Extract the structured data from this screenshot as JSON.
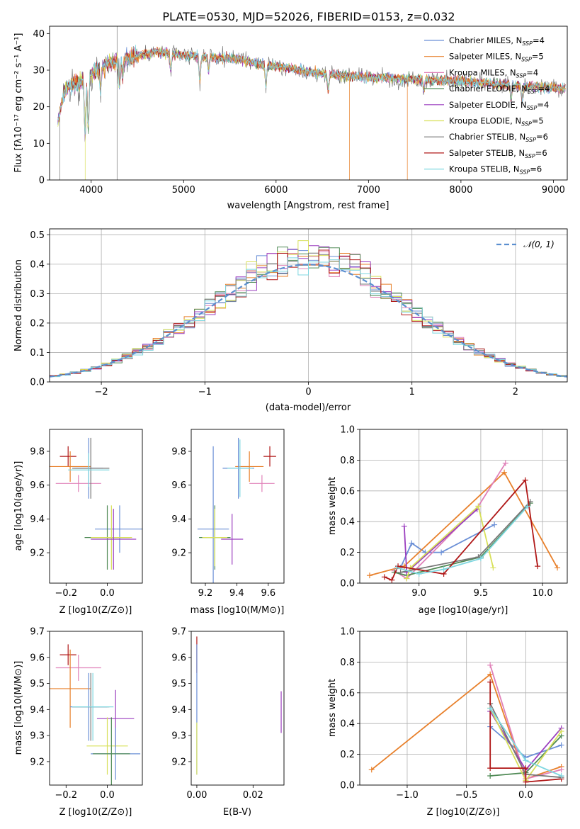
{
  "figure_title": "PLATE=0530, MJD=52026, FIBERID=0153, z=0.032",
  "colors": [
    "#6a8fd6",
    "#e8802b",
    "#e080b8",
    "#4f8a55",
    "#9b3fbf",
    "#d8e05a",
    "#777777",
    "#b01818",
    "#7fd7e0"
  ],
  "chart_data": [
    {
      "id": "spectrum",
      "type": "line",
      "title": "PLATE=0530, MJD=52026, FIBERID=0153, z=0.032",
      "xlabel": "wavelength [Angstrom, rest frame]",
      "ylabel": "Flux [fλ10⁻¹⁷ erg cm⁻² s⁻¹ A⁻¹]",
      "xlim": [
        3550,
        9150
      ],
      "ylim": [
        0,
        42
      ],
      "xticks": [
        4000,
        5000,
        6000,
        7000,
        8000,
        9000
      ],
      "yticks": [
        0,
        10,
        20,
        30,
        40
      ],
      "legend_position": "top-right",
      "legend": [
        "Chabrier MILES, N_SSP=4",
        "Salpeter MILES, N_SSP=5",
        "Kroupa MILES, N_SSP=4",
        "Chabrier ELODIE, N_SSP=4",
        "Salpeter ELODIE, N_SSP=4",
        "Kroupa ELODIE, N_SSP=5",
        "Chabrier STELIB, N_SSP=6",
        "Salpeter STELIB, N_SSP=6",
        "Kroupa STELIB, N_SSP=6"
      ],
      "continuum": [
        [
          3650,
          19
        ],
        [
          3700,
          24
        ],
        [
          3800,
          26
        ],
        [
          3900,
          27
        ],
        [
          4000,
          29
        ],
        [
          4200,
          32
        ],
        [
          4500,
          34
        ],
        [
          4700,
          35
        ],
        [
          5000,
          34
        ],
        [
          5300,
          33.5
        ],
        [
          5600,
          33
        ],
        [
          6000,
          31
        ],
        [
          6500,
          29
        ],
        [
          7000,
          28
        ],
        [
          7500,
          27.5
        ],
        [
          8000,
          27
        ],
        [
          8500,
          26
        ],
        [
          8800,
          25.5
        ],
        [
          9100,
          25
        ]
      ]
    },
    {
      "id": "residuals",
      "type": "histogram",
      "xlabel": "(data-model)/error",
      "ylabel": "Normed distribution",
      "xlim": [
        -2.5,
        2.5
      ],
      "ylim": [
        0,
        0.52
      ],
      "xticks": [
        -2,
        -1,
        0,
        1,
        2
      ],
      "yticks": [
        0.0,
        0.1,
        0.2,
        0.3,
        0.4,
        0.5
      ],
      "legend_position": "top-right",
      "legend": [
        "𝒩(0, 1)"
      ],
      "grid": true,
      "bin_width": 0.1
    },
    {
      "id": "age_vs_Z",
      "type": "errorbar",
      "xlabel": "Z [log10(Z/Z⊙)]",
      "ylabel": "age  [log10(age/yr)]",
      "xlim": [
        -0.28,
        0.17
      ],
      "ylim": [
        9.02,
        9.93
      ],
      "xticks": [
        -0.2,
        0.0
      ],
      "yticks": [
        9.2,
        9.4,
        9.6,
        9.8
      ],
      "points": [
        {
          "x": -0.19,
          "y": 9.77,
          "xerr": 0.04,
          "yerr": 0.06,
          "c": 7
        },
        {
          "x": -0.18,
          "y": 9.71,
          "xerr": 0.1,
          "yerr": 0.09,
          "c": 1
        },
        {
          "x": -0.14,
          "y": 9.61,
          "xerr": 0.11,
          "yerr": 0.05,
          "c": 2
        },
        {
          "x": -0.09,
          "y": 9.7,
          "xerr": 0.07,
          "yerr": 0.18,
          "c": 0
        },
        {
          "x": -0.08,
          "y": 9.7,
          "xerr": 0.09,
          "yerr": 0.18,
          "c": 6
        },
        {
          "x": -0.09,
          "y": 9.69,
          "xerr": 0.1,
          "yerr": 0.1,
          "c": 8
        },
        {
          "x": 0.06,
          "y": 9.34,
          "xerr": 0.12,
          "yerr": 0.14,
          "c": 0
        },
        {
          "x": 0.0,
          "y": 9.29,
          "xerr": 0.11,
          "yerr": 0.19,
          "c": 3
        },
        {
          "x": 0.02,
          "y": 9.29,
          "xerr": 0.1,
          "yerr": 0.19,
          "c": 5
        },
        {
          "x": 0.03,
          "y": 9.28,
          "xerr": 0.11,
          "yerr": 0.18,
          "c": 4
        }
      ]
    },
    {
      "id": "age_vs_mass",
      "type": "errorbar",
      "xlabel": "mass [log10(M/M⊙)]",
      "ylabel": "",
      "xlim": [
        9.11,
        9.7
      ],
      "ylim": [
        9.02,
        9.93
      ],
      "xticks": [
        9.2,
        9.4,
        9.6
      ],
      "yticks": [
        9.2,
        9.4,
        9.6,
        9.8
      ],
      "points": [
        {
          "x": 9.61,
          "y": 9.77,
          "xerr": 0.04,
          "yerr": 0.06,
          "c": 7
        },
        {
          "x": 9.56,
          "y": 9.61,
          "xerr": 0.08,
          "yerr": 0.05,
          "c": 2
        },
        {
          "x": 9.48,
          "y": 9.71,
          "xerr": 0.09,
          "yerr": 0.09,
          "c": 1
        },
        {
          "x": 9.41,
          "y": 9.7,
          "xerr": 0.1,
          "yerr": 0.18,
          "c": 0
        },
        {
          "x": 9.42,
          "y": 9.7,
          "xerr": 0.08,
          "yerr": 0.17,
          "c": 8
        },
        {
          "x": 9.25,
          "y": 9.34,
          "xerr": 0.1,
          "yerr": 0.49,
          "c": 0
        },
        {
          "x": 9.26,
          "y": 9.29,
          "xerr": 0.1,
          "yerr": 0.19,
          "c": 3
        },
        {
          "x": 9.26,
          "y": 9.29,
          "xerr": 0.08,
          "yerr": 0.17,
          "c": 5
        },
        {
          "x": 9.37,
          "y": 9.28,
          "xerr": 0.07,
          "yerr": 0.15,
          "c": 4
        }
      ]
    },
    {
      "id": "massweight_vs_age",
      "type": "line",
      "xlabel": "age  [log10(age/yr)]",
      "ylabel": "mass weight",
      "xlim": [
        8.52,
        10.2
      ],
      "ylim": [
        0,
        1.0
      ],
      "xticks": [
        9.0,
        9.5,
        10.0
      ],
      "yticks": [
        0.0,
        0.2,
        0.4,
        0.6,
        0.8,
        1.0
      ],
      "grid": true,
      "series": [
        {
          "c": 0,
          "points": [
            [
              8.85,
              0.1
            ],
            [
              8.94,
              0.26
            ],
            [
              9.05,
              0.2
            ],
            [
              9.18,
              0.2
            ],
            [
              9.61,
              0.38
            ]
          ]
        },
        {
          "c": 1,
          "points": [
            [
              8.6,
              0.05
            ],
            [
              8.88,
              0.11
            ],
            [
              9.69,
              0.72
            ],
            [
              10.12,
              0.1
            ]
          ]
        },
        {
          "c": 2,
          "points": [
            [
              8.8,
              0.08
            ],
            [
              8.9,
              0.03
            ],
            [
              9.48,
              0.5
            ],
            [
              9.7,
              0.78
            ]
          ]
        },
        {
          "c": 3,
          "points": [
            [
              8.8,
              0.07
            ],
            [
              8.9,
              0.05
            ],
            [
              9.5,
              0.17
            ],
            [
              9.9,
              0.52
            ]
          ]
        },
        {
          "c": 4,
          "points": [
            [
              8.88,
              0.37
            ],
            [
              8.9,
              0.07
            ],
            [
              9.47,
              0.48
            ]
          ]
        },
        {
          "c": 5,
          "points": [
            [
              8.9,
              0.03
            ],
            [
              8.93,
              0.1
            ],
            [
              9.48,
              0.5
            ],
            [
              9.6,
              0.1
            ]
          ]
        },
        {
          "c": 6,
          "points": [
            [
              8.85,
              0.07
            ],
            [
              9.48,
              0.17
            ],
            [
              9.9,
              0.53
            ]
          ]
        },
        {
          "c": 7,
          "points": [
            [
              8.72,
              0.04
            ],
            [
              8.78,
              0.02
            ],
            [
              8.83,
              0.11
            ],
            [
              9.2,
              0.06
            ],
            [
              9.86,
              0.67
            ],
            [
              9.96,
              0.11
            ]
          ]
        },
        {
          "c": 8,
          "points": [
            [
              8.82,
              0.1
            ],
            [
              9.0,
              0.06
            ],
            [
              9.2,
              0.09
            ],
            [
              9.5,
              0.16
            ],
            [
              9.88,
              0.5
            ]
          ]
        }
      ]
    },
    {
      "id": "mass_vs_Z",
      "type": "errorbar",
      "xlabel": "Z [log10(Z/Z⊙)]",
      "ylabel": "mass [log10(M/M⊙)]",
      "xlim": [
        -0.28,
        0.17
      ],
      "ylim": [
        9.11,
        9.7
      ],
      "xticks": [
        -0.2,
        0.0
      ],
      "yticks": [
        9.2,
        9.3,
        9.4,
        9.5,
        9.6,
        9.7
      ],
      "points": [
        {
          "x": -0.19,
          "y": 9.61,
          "xerr": 0.04,
          "yerr": 0.04,
          "c": 7
        },
        {
          "x": -0.14,
          "y": 9.56,
          "xerr": 0.11,
          "yerr": 0.05,
          "c": 2
        },
        {
          "x": -0.18,
          "y": 9.48,
          "xerr": 0.1,
          "yerr": 0.15,
          "c": 1
        },
        {
          "x": -0.09,
          "y": 9.41,
          "xerr": 0.09,
          "yerr": 0.13,
          "c": 0
        },
        {
          "x": -0.08,
          "y": 9.41,
          "xerr": 0.09,
          "yerr": 0.13,
          "c": 6
        },
        {
          "x": -0.07,
          "y": 9.41,
          "xerr": 0.1,
          "yerr": 0.13,
          "c": 8
        },
        {
          "x": 0.04,
          "y": 9.365,
          "xerr": 0.09,
          "yerr": 0.11,
          "c": 4
        },
        {
          "x": 0.0,
          "y": 9.26,
          "xerr": 0.1,
          "yerr": 0.11,
          "c": 5
        },
        {
          "x": 0.04,
          "y": 9.23,
          "xerr": 0.12,
          "yerr": 0.1,
          "c": 0
        },
        {
          "x": 0.02,
          "y": 9.23,
          "xerr": 0.09,
          "yerr": 0.14,
          "c": 3
        }
      ]
    },
    {
      "id": "mass_vs_ebv",
      "type": "errorbar",
      "xlabel": "E(B-V)",
      "ylabel": "",
      "xlim": [
        -0.002,
        0.031
      ],
      "ylim": [
        9.11,
        9.7
      ],
      "xticks": [
        0.0,
        0.02
      ],
      "yticks": [
        9.2,
        9.3,
        9.4,
        9.5,
        9.6,
        9.7
      ],
      "points": [
        {
          "x": 0.0,
          "y": 9.61,
          "yerr": 0.07,
          "c": 7
        },
        {
          "x": 0.0,
          "y": 9.4,
          "yerr": 0.25,
          "c": 0
        },
        {
          "x": 0.0,
          "y": 9.25,
          "yerr": 0.1,
          "c": 5
        },
        {
          "x": 0.03,
          "y": 9.39,
          "yerr": 0.08,
          "c": 4
        }
      ]
    },
    {
      "id": "massweight_vs_Z",
      "type": "line",
      "xlabel": "Z [log10(Z/Z⊙)]",
      "ylabel": "mass weight",
      "xlim": [
        -1.4,
        0.35
      ],
      "ylim": [
        0,
        1.0
      ],
      "xticks": [
        -1.0,
        -0.5,
        0.0
      ],
      "yticks": [
        0.0,
        0.2,
        0.4,
        0.6,
        0.8,
        1.0
      ],
      "grid": true,
      "series": [
        {
          "c": 0,
          "points": [
            [
              -0.3,
              0.38
            ],
            [
              0.0,
              0.18
            ],
            [
              0.3,
              0.26
            ]
          ]
        },
        {
          "c": 1,
          "points": [
            [
              -1.3,
              0.1
            ],
            [
              -0.3,
              0.72
            ],
            [
              0.0,
              0.04
            ],
            [
              0.3,
              0.12
            ]
          ]
        },
        {
          "c": 2,
          "points": [
            [
              -0.3,
              0.78
            ],
            [
              0.0,
              0.04
            ],
            [
              0.3,
              0.1
            ]
          ]
        },
        {
          "c": 3,
          "points": [
            [
              -0.3,
              0.06
            ],
            [
              0.0,
              0.08
            ],
            [
              0.3,
              0.32
            ]
          ]
        },
        {
          "c": 4,
          "points": [
            [
              -0.3,
              0.48
            ],
            [
              0.0,
              0.1
            ],
            [
              0.3,
              0.37
            ]
          ]
        },
        {
          "c": 5,
          "points": [
            [
              -0.3,
              0.5
            ],
            [
              0.0,
              0.03
            ],
            [
              0.3,
              0.35
            ]
          ]
        },
        {
          "c": 6,
          "points": [
            [
              -0.3,
              0.53
            ],
            [
              0.0,
              0.07
            ],
            [
              0.3,
              0.05
            ]
          ]
        },
        {
          "c": 7,
          "points": [
            [
              -0.3,
              0.67
            ],
            [
              -0.3,
              0.11
            ],
            [
              0.0,
              0.11
            ],
            [
              0.0,
              0.02
            ],
            [
              0.3,
              0.04
            ]
          ]
        },
        {
          "c": 8,
          "points": [
            [
              -0.3,
              0.5
            ],
            [
              0.0,
              0.16
            ],
            [
              0.3,
              0.06
            ]
          ]
        }
      ]
    }
  ]
}
